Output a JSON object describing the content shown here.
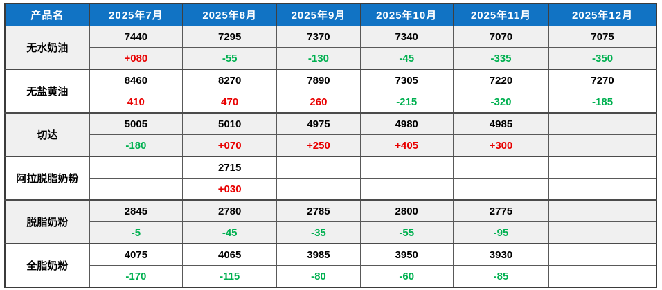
{
  "colors": {
    "header_bg": "#1173C4",
    "header_text": "#FFFFFF",
    "up": "#E80000",
    "down": "#00B050",
    "band": "#F0F0F0",
    "row_bg": "#FFFFFF",
    "border": "#595959",
    "text": "#000000"
  },
  "table": {
    "product_header": "产品名",
    "month_headers": [
      "2025年7月",
      "2025年8月",
      "2025年9月",
      "2025年10月",
      "2025年11月",
      "2025年12月"
    ],
    "products": [
      {
        "name": "无水奶油",
        "prices": [
          "7440",
          "7295",
          "7370",
          "7340",
          "7070",
          "7075"
        ],
        "changes": [
          {
            "text": "+080",
            "dir": "up"
          },
          {
            "text": "-55",
            "dir": "down"
          },
          {
            "text": "-130",
            "dir": "down"
          },
          {
            "text": "-45",
            "dir": "down"
          },
          {
            "text": "-335",
            "dir": "down"
          },
          {
            "text": "-350",
            "dir": "down"
          }
        ]
      },
      {
        "name": "无盐黄油",
        "prices": [
          "8460",
          "8270",
          "7890",
          "7305",
          "7220",
          "7270"
        ],
        "changes": [
          {
            "text": "410",
            "dir": "up"
          },
          {
            "text": "470",
            "dir": "up"
          },
          {
            "text": "260",
            "dir": "up"
          },
          {
            "text": "-215",
            "dir": "down"
          },
          {
            "text": "-320",
            "dir": "down"
          },
          {
            "text": "-185",
            "dir": "down"
          }
        ]
      },
      {
        "name": "切达",
        "prices": [
          "5005",
          "5010",
          "4975",
          "4980",
          "4985",
          ""
        ],
        "changes": [
          {
            "text": "-180",
            "dir": "down"
          },
          {
            "text": "+070",
            "dir": "up"
          },
          {
            "text": "+250",
            "dir": "up"
          },
          {
            "text": "+405",
            "dir": "up"
          },
          {
            "text": "+300",
            "dir": "up"
          },
          {
            "text": "",
            "dir": ""
          }
        ]
      },
      {
        "name": "阿拉脱脂奶粉",
        "prices": [
          "",
          "2715",
          "",
          "",
          "",
          ""
        ],
        "changes": [
          {
            "text": "",
            "dir": ""
          },
          {
            "text": "+030",
            "dir": "up"
          },
          {
            "text": "",
            "dir": ""
          },
          {
            "text": "",
            "dir": ""
          },
          {
            "text": "",
            "dir": ""
          },
          {
            "text": "",
            "dir": ""
          }
        ]
      },
      {
        "name": "脱脂奶粉",
        "prices": [
          "2845",
          "2780",
          "2785",
          "2800",
          "2775",
          ""
        ],
        "changes": [
          {
            "text": "-5",
            "dir": "down"
          },
          {
            "text": "-45",
            "dir": "down"
          },
          {
            "text": "-35",
            "dir": "down"
          },
          {
            "text": "-55",
            "dir": "down"
          },
          {
            "text": "-95",
            "dir": "down"
          },
          {
            "text": "",
            "dir": ""
          }
        ]
      },
      {
        "name": "全脂奶粉",
        "prices": [
          "4075",
          "4065",
          "3985",
          "3950",
          "3930",
          ""
        ],
        "changes": [
          {
            "text": "-170",
            "dir": "down"
          },
          {
            "text": "-115",
            "dir": "down"
          },
          {
            "text": "-80",
            "dir": "down"
          },
          {
            "text": "-60",
            "dir": "down"
          },
          {
            "text": "-85",
            "dir": "down"
          },
          {
            "text": "",
            "dir": ""
          }
        ]
      }
    ]
  }
}
